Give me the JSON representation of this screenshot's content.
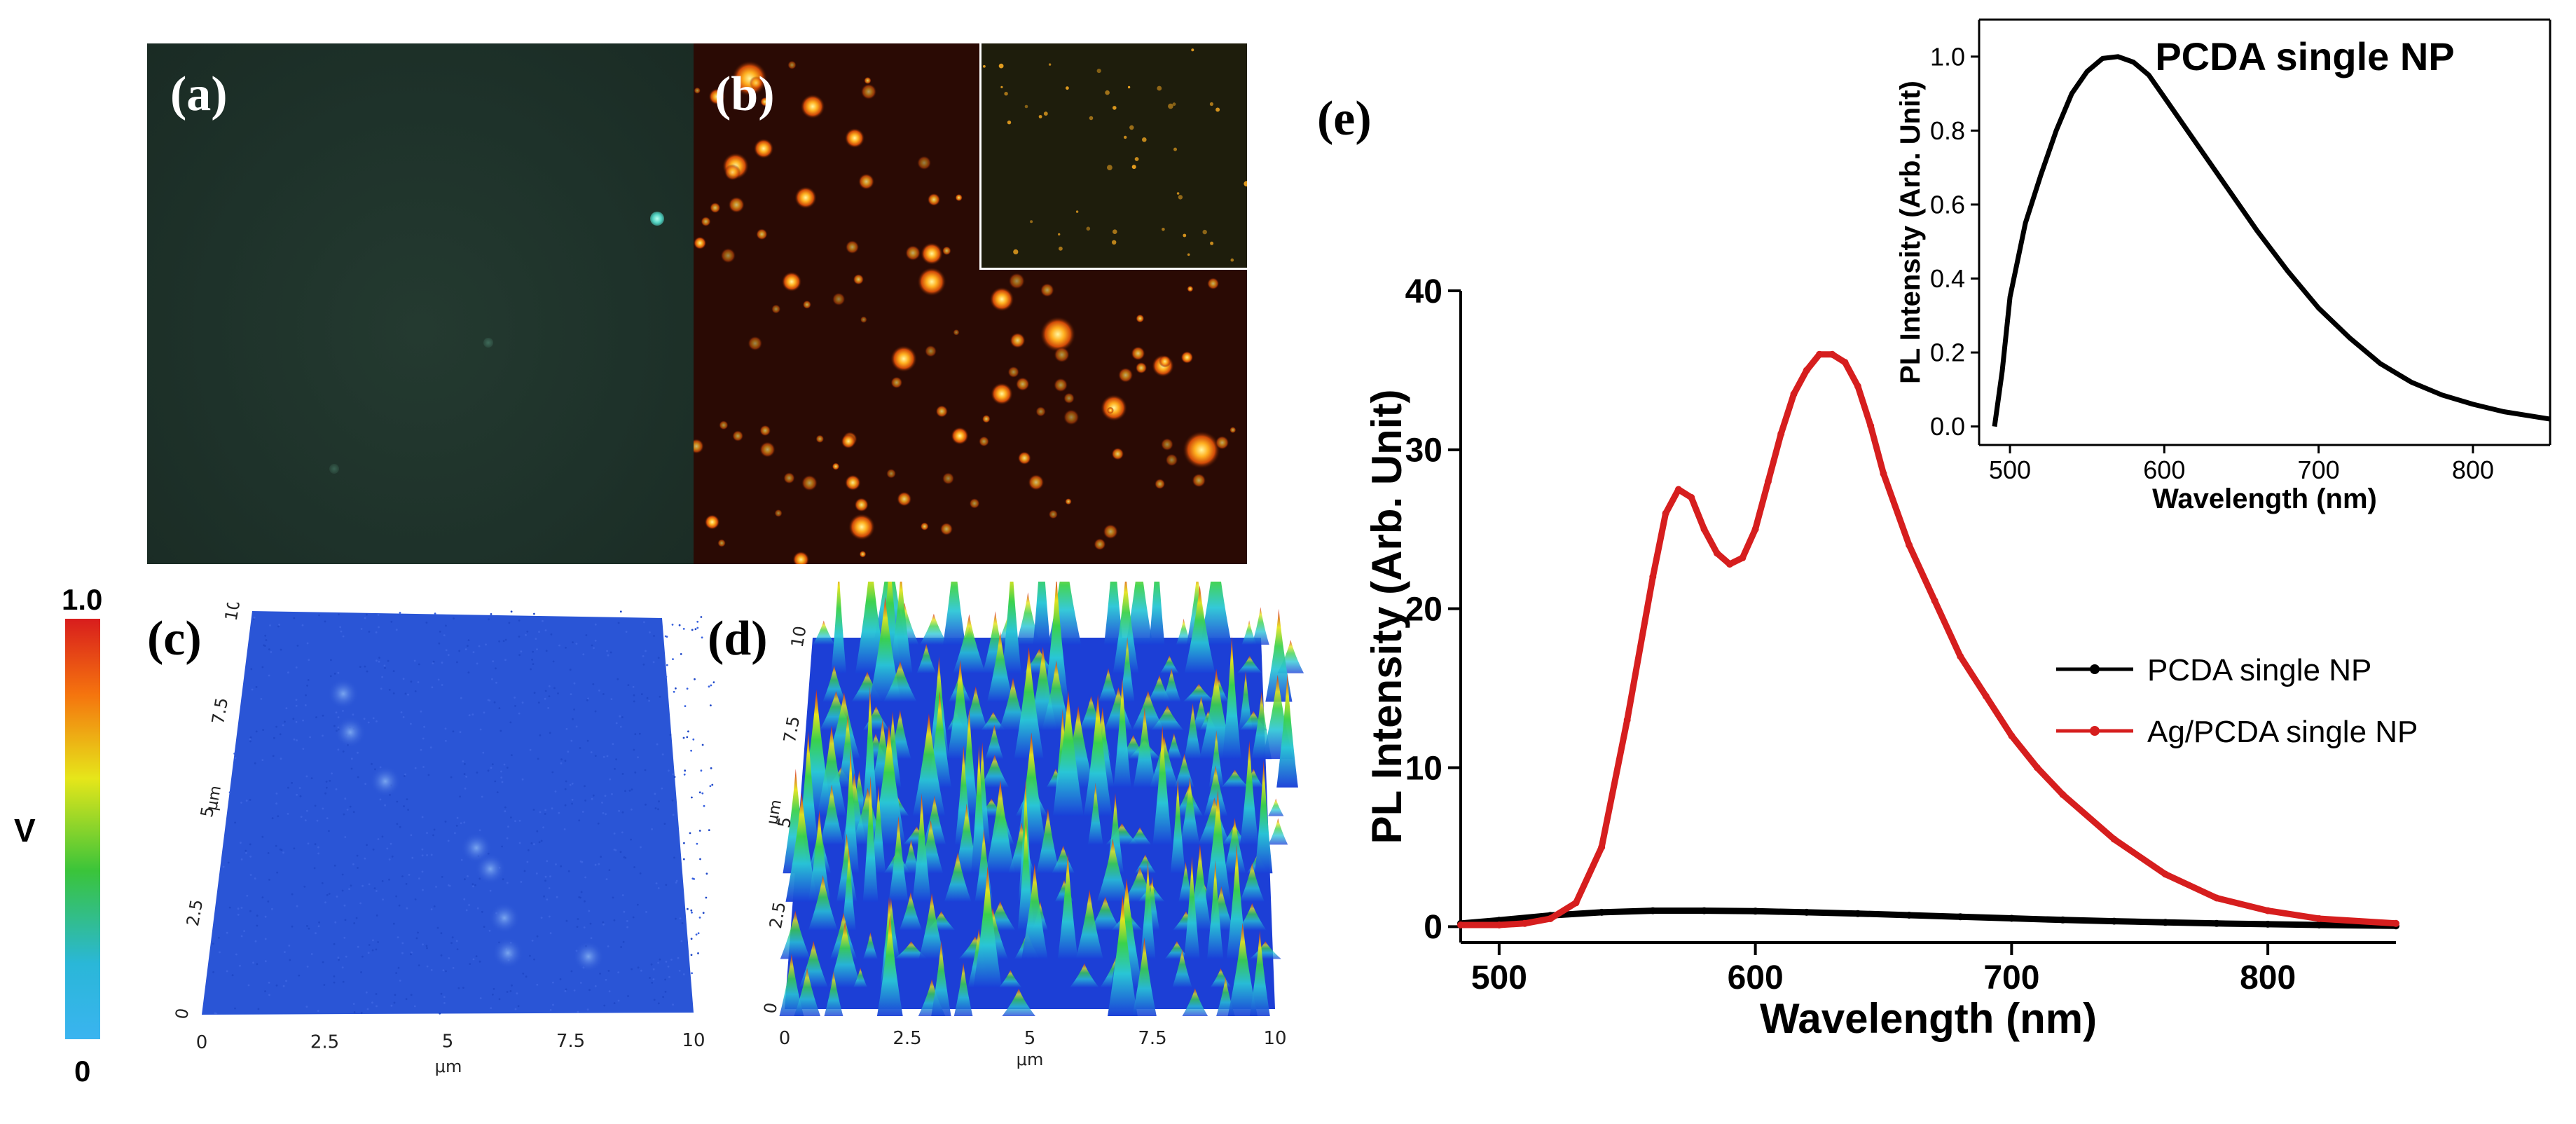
{
  "figure": {
    "panels": {
      "a": {
        "label": "(a)"
      },
      "b": {
        "label": "(b)"
      },
      "c": {
        "label": "(c)"
      },
      "d": {
        "label": "(d)"
      },
      "e": {
        "label": "(e)"
      }
    },
    "colorbar": {
      "top_label": "1.0",
      "bottom_label": "0",
      "axis_label": "V",
      "colors": [
        "#d81d1d",
        "#f57b0e",
        "#e6e61a",
        "#3ac43a",
        "#2ab7d8",
        "#3ab4f0"
      ]
    },
    "afm_c": {
      "x_ticks": [
        "0",
        "2.5",
        "5",
        "7.5",
        "10"
      ],
      "y_ticks": [
        "0",
        "2.5",
        "5",
        "7.5",
        "10"
      ],
      "x_unit": "μm",
      "y_unit": "μm"
    },
    "afm_d": {
      "x_ticks": [
        "0",
        "2.5",
        "5",
        "7.5",
        "10"
      ],
      "y_ticks": [
        "0",
        "2.5",
        "5",
        "7.5",
        "10"
      ],
      "x_unit": "μm",
      "y_unit": "μm"
    }
  },
  "chart_data": [
    {
      "type": "line",
      "id": "main",
      "title": "",
      "xlabel": "Wavelength (nm)",
      "ylabel": "PL Intensity (Arb. Unit)",
      "xlim": [
        485,
        850
      ],
      "ylim": [
        -1,
        40
      ],
      "x_ticks": [
        500,
        600,
        700,
        800
      ],
      "y_ticks": [
        0,
        10,
        20,
        30,
        40
      ],
      "legend_position": "center-right",
      "series": [
        {
          "name": "PCDA single NP",
          "color": "#000000",
          "x": [
            485,
            500,
            520,
            540,
            560,
            580,
            600,
            620,
            640,
            660,
            680,
            700,
            720,
            740,
            760,
            780,
            800,
            820,
            850
          ],
          "y": [
            0.2,
            0.4,
            0.7,
            0.9,
            1.0,
            1.0,
            0.97,
            0.9,
            0.82,
            0.72,
            0.62,
            0.52,
            0.42,
            0.34,
            0.27,
            0.2,
            0.15,
            0.1,
            0.05
          ]
        },
        {
          "name": "Ag/PCDA single NP",
          "color": "#d61e1e",
          "x": [
            485,
            500,
            510,
            520,
            530,
            540,
            550,
            560,
            565,
            570,
            575,
            580,
            585,
            590,
            595,
            600,
            605,
            610,
            615,
            620,
            625,
            630,
            635,
            640,
            645,
            650,
            660,
            670,
            680,
            690,
            700,
            710,
            720,
            740,
            760,
            780,
            800,
            820,
            850
          ],
          "y": [
            0.1,
            0.1,
            0.2,
            0.5,
            1.5,
            5,
            13,
            22,
            26,
            27.5,
            27,
            25,
            23.5,
            22.8,
            23.2,
            25,
            28,
            31,
            33.5,
            35,
            36,
            36,
            35.5,
            34,
            31.5,
            28.5,
            24,
            20.5,
            17,
            14.5,
            12,
            10,
            8.3,
            5.5,
            3.3,
            1.8,
            1.0,
            0.5,
            0.2
          ]
        }
      ]
    },
    {
      "type": "line",
      "id": "inset",
      "title": "PCDA single NP",
      "xlabel": "Wavelength (nm)",
      "ylabel": "PL Intensity (Arb. Unit)",
      "xlim": [
        480,
        850
      ],
      "ylim": [
        -0.05,
        1.1
      ],
      "x_ticks": [
        500,
        600,
        700,
        800
      ],
      "y_ticks": [
        "0.0",
        "0.2",
        "0.4",
        "0.6",
        "0.8",
        "1.0"
      ],
      "series": [
        {
          "name": "PCDA single NP",
          "color": "#000000",
          "x": [
            490,
            495,
            500,
            505,
            510,
            520,
            530,
            540,
            550,
            560,
            570,
            580,
            590,
            600,
            620,
            640,
            660,
            680,
            700,
            720,
            740,
            760,
            780,
            800,
            820,
            850
          ],
          "y": [
            0.0,
            0.15,
            0.35,
            0.45,
            0.55,
            0.68,
            0.8,
            0.9,
            0.96,
            0.995,
            1.0,
            0.985,
            0.95,
            0.89,
            0.77,
            0.65,
            0.53,
            0.42,
            0.32,
            0.24,
            0.17,
            0.12,
            0.085,
            0.06,
            0.04,
            0.02
          ]
        }
      ]
    }
  ]
}
